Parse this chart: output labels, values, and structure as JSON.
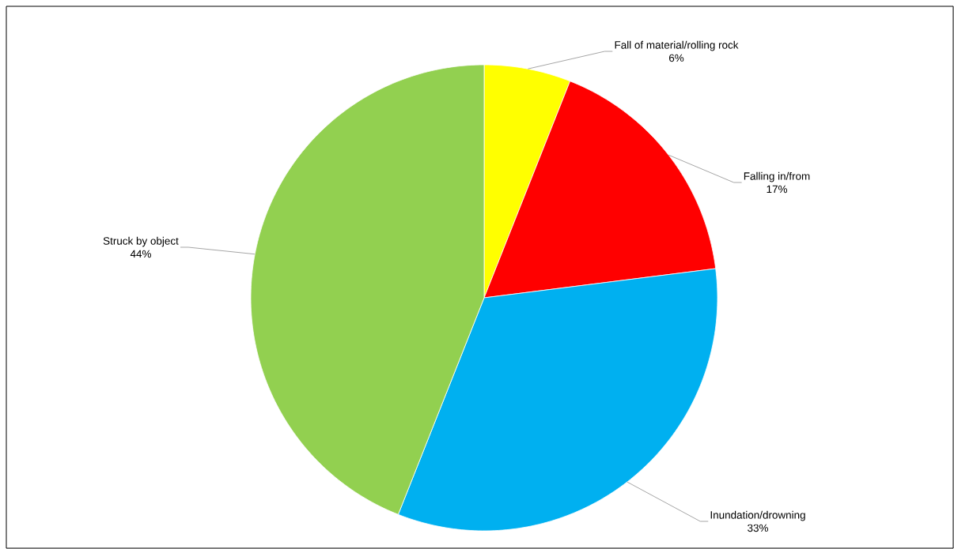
{
  "chart_data": {
    "type": "pie",
    "categories": [
      "Fall of material/rolling rock",
      "Falling in/from",
      "Inundation/drowning",
      "Struck by object"
    ],
    "values": [
      6,
      17,
      33,
      44
    ],
    "value_labels": [
      "6%",
      "17%",
      "33%",
      "44%"
    ],
    "colors": [
      "#ffff00",
      "#ff0000",
      "#00b0f0",
      "#92d050"
    ]
  }
}
